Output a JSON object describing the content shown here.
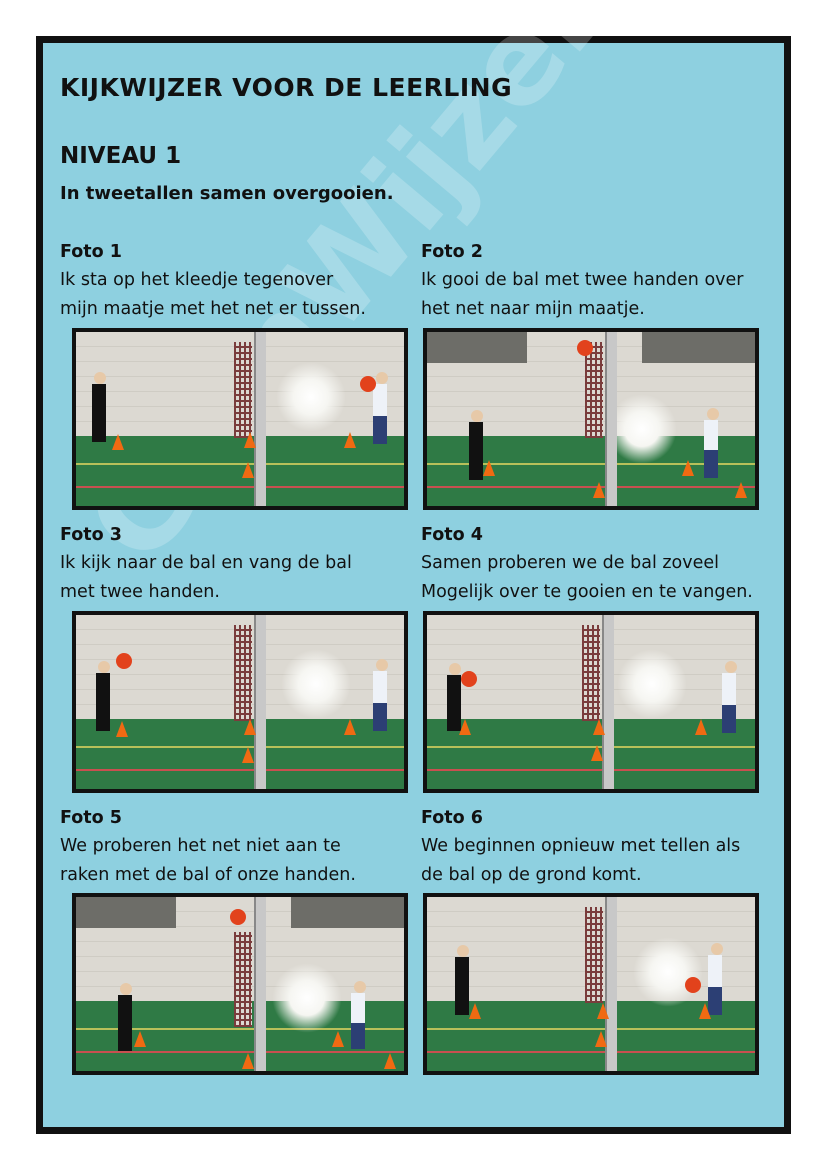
{
  "title": "KIJKWIJZER VOOR DE LEERLING",
  "level": "NIVEAU 1",
  "intro": "In tweetallen samen overgooien.",
  "watermark": "GymWijzer®",
  "photos": [
    {
      "label": "Foto 1",
      "line1": "Ik sta op het kleedje tegenover",
      "line2": "mijn maatje met het net er tussen."
    },
    {
      "label": "Foto 2",
      "line1": "Ik gooi de bal met twee handen over",
      "line2": "het net naar mijn maatje."
    },
    {
      "label": "Foto 3",
      "line1": "Ik kijk naar de bal en vang de bal",
      "line2": "met twee handen."
    },
    {
      "label": "Foto 4",
      "line1": "Samen proberen we de bal zoveel",
      "line2": "Mogelijk over te gooien en te vangen."
    },
    {
      "label": "Foto 5",
      "line1": "We proberen het net niet aan te",
      "line2": "raken met de bal of onze handen."
    },
    {
      "label": "Foto 6",
      "line1": "We beginnen opnieuw met tellen als",
      "line2": "de bal op de grond komt."
    }
  ]
}
